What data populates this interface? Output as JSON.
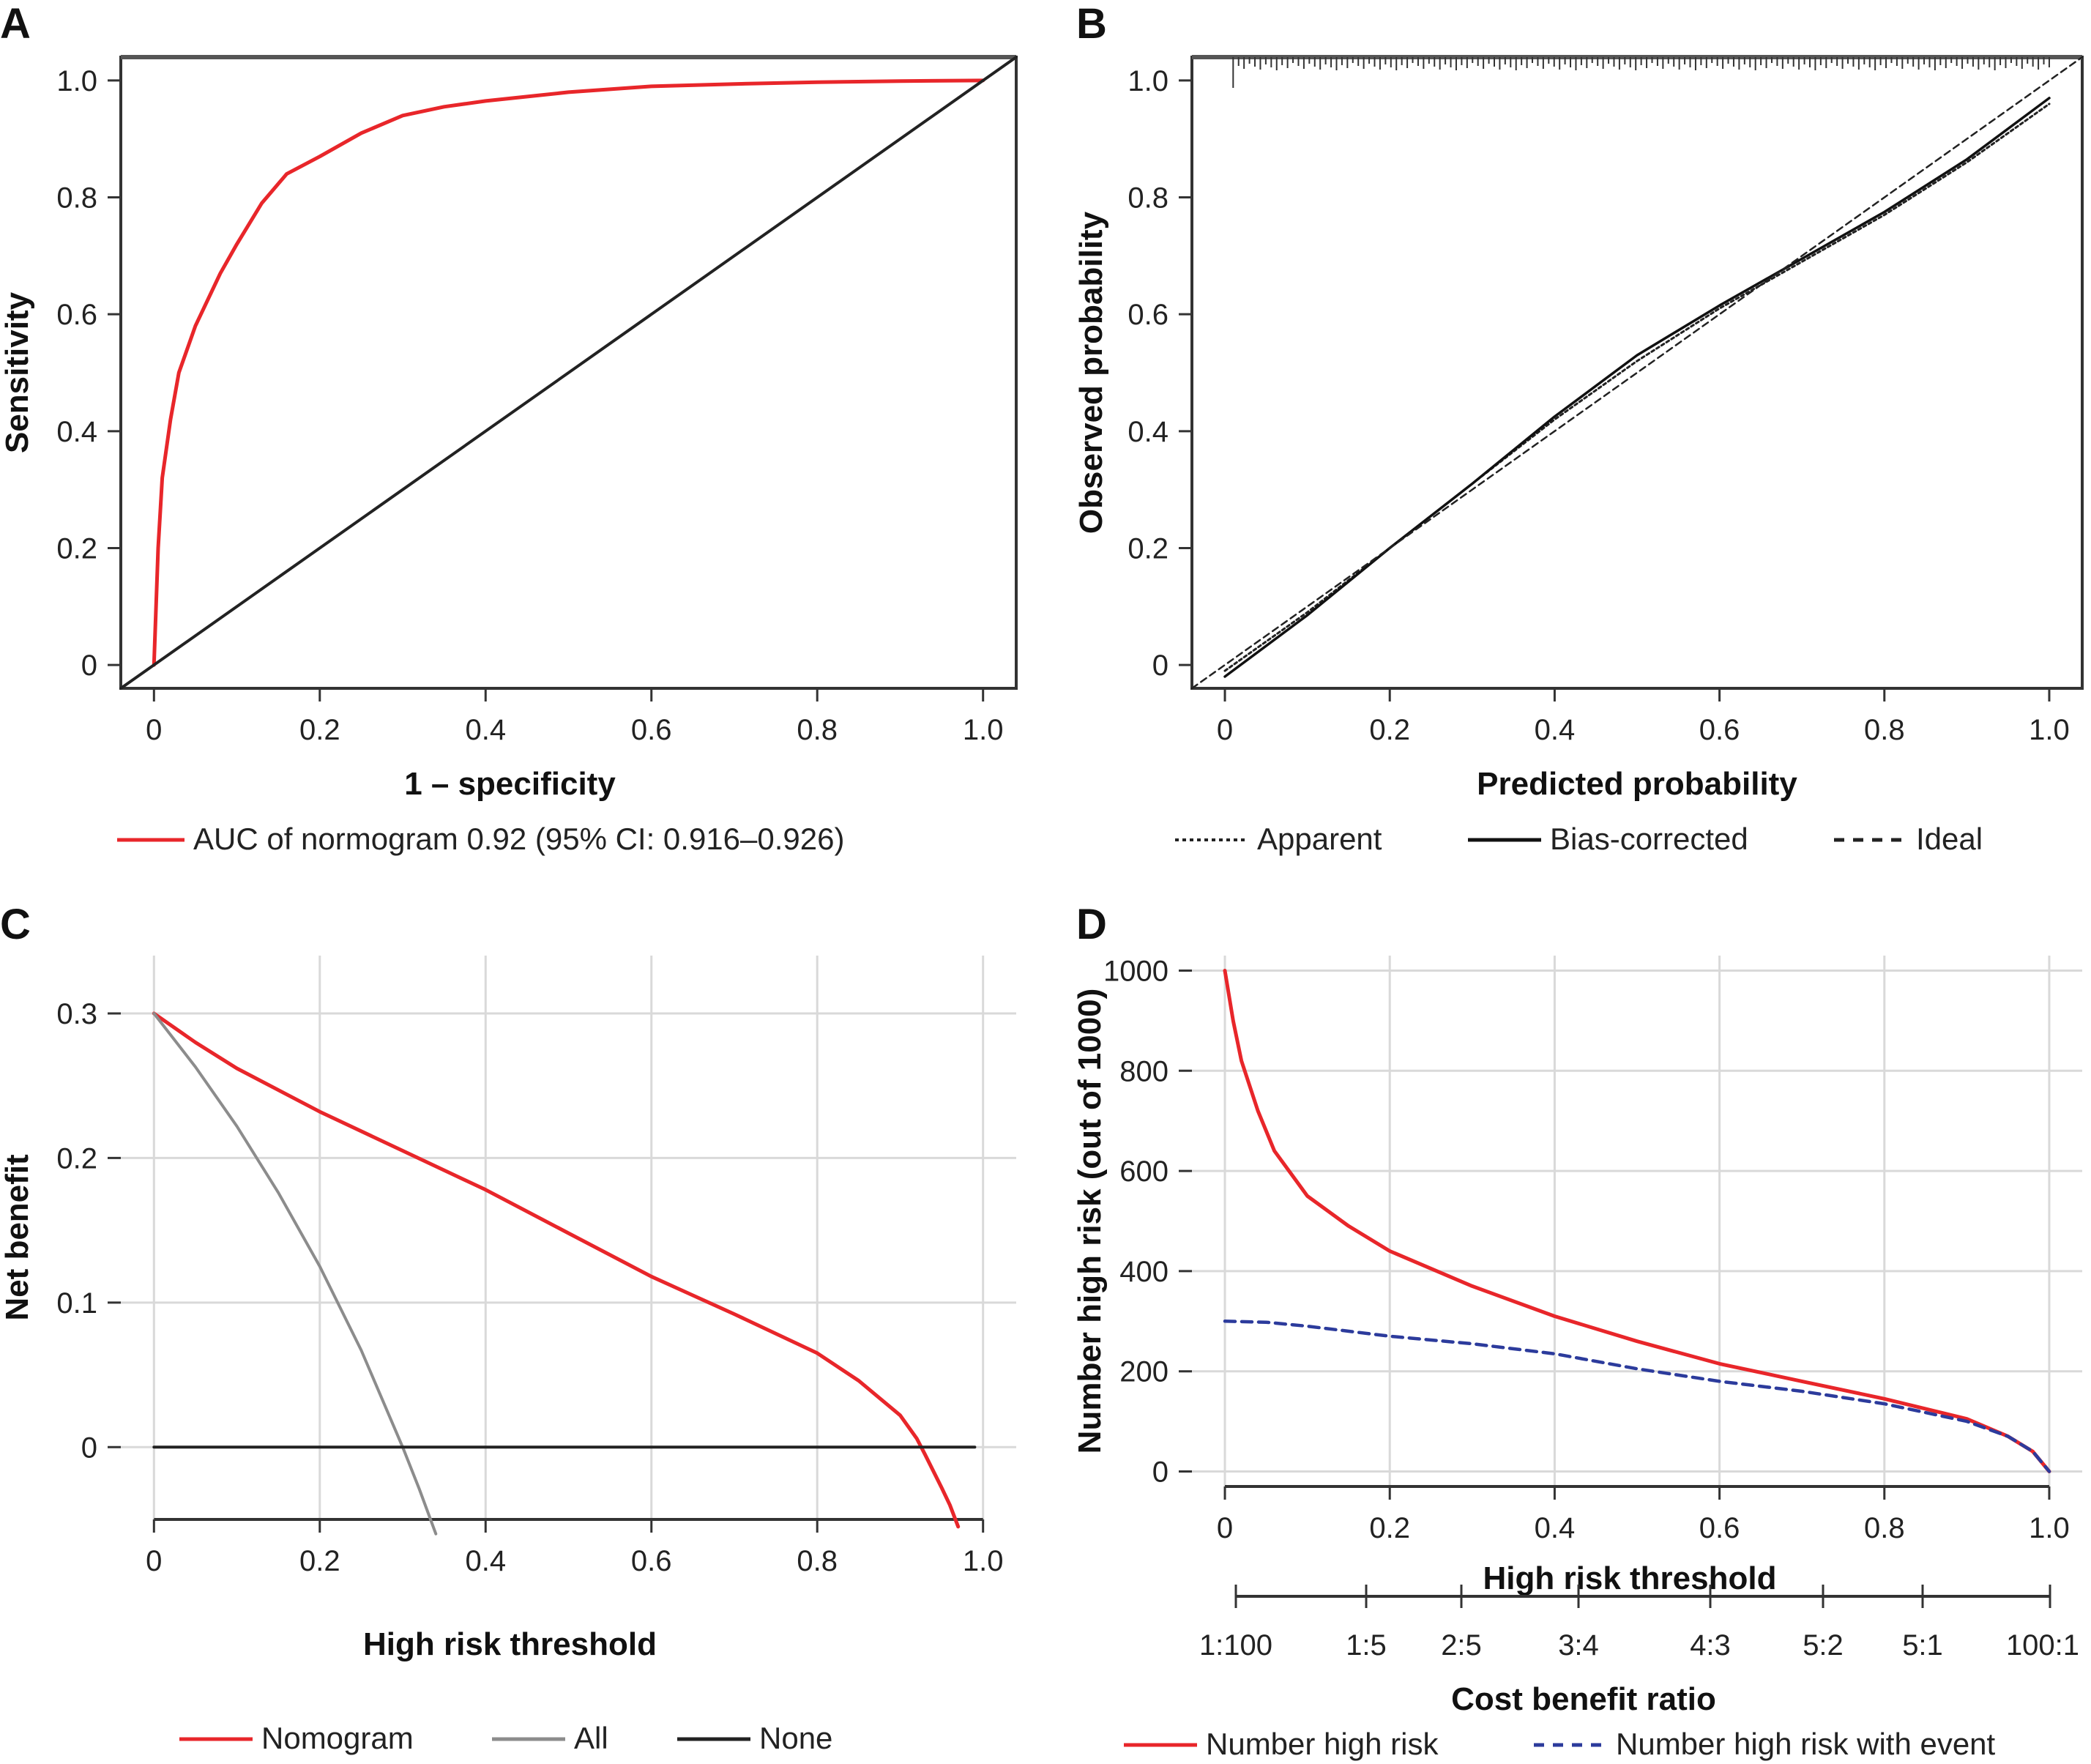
{
  "chart_data": [
    {
      "panel": "A",
      "type": "line",
      "xlabel": "1 – specificity",
      "ylabel": "Sensitivity",
      "xlim": [
        -0.04,
        1.04
      ],
      "ylim": [
        -0.04,
        1.04
      ],
      "xticks": [
        "0",
        "0.2",
        "0.4",
        "0.6",
        "0.8",
        "1.0"
      ],
      "yticks": [
        "0",
        "0.2",
        "0.4",
        "0.6",
        "0.8",
        "1.0"
      ],
      "legend_placement": "bottom",
      "series": [
        {
          "name": "AUC of normogram 0.92 (95% CI: 0.916–0.926)",
          "color": "#e8262a",
          "x": [
            0,
            0.005,
            0.01,
            0.02,
            0.03,
            0.05,
            0.08,
            0.1,
            0.13,
            0.16,
            0.2,
            0.25,
            0.3,
            0.35,
            0.4,
            0.5,
            0.6,
            0.7,
            0.8,
            0.9,
            1.0
          ],
          "y": [
            0,
            0.2,
            0.32,
            0.42,
            0.5,
            0.58,
            0.67,
            0.72,
            0.79,
            0.84,
            0.87,
            0.91,
            0.94,
            0.955,
            0.965,
            0.98,
            0.99,
            0.994,
            0.997,
            0.999,
            1.0
          ]
        },
        {
          "name": "",
          "color": "#222222",
          "x": [
            -0.04,
            1.04
          ],
          "y": [
            -0.04,
            1.04
          ]
        }
      ]
    },
    {
      "panel": "B",
      "type": "line",
      "xlabel": "Predicted probability",
      "ylabel": "Observed probability",
      "xlim": [
        -0.04,
        1.04
      ],
      "ylim": [
        -0.04,
        1.04
      ],
      "xticks": [
        "0",
        "0.2",
        "0.4",
        "0.6",
        "0.8",
        "1.0"
      ],
      "yticks": [
        "0",
        "0.2",
        "0.4",
        "0.6",
        "0.8",
        "1.0"
      ],
      "legend_placement": "bottom",
      "series": [
        {
          "name": "Apparent",
          "color": "#222222",
          "x": [
            0,
            0.1,
            0.2,
            0.3,
            0.4,
            0.5,
            0.6,
            0.7,
            0.8,
            0.9,
            1.0
          ],
          "y": [
            -0.01,
            0.09,
            0.2,
            0.31,
            0.42,
            0.52,
            0.61,
            0.69,
            0.77,
            0.86,
            0.96
          ]
        },
        {
          "name": "Bias-corrected",
          "color": "#111111",
          "x": [
            0,
            0.1,
            0.2,
            0.3,
            0.4,
            0.5,
            0.6,
            0.7,
            0.8,
            0.9,
            1.0
          ],
          "y": [
            -0.02,
            0.085,
            0.2,
            0.31,
            0.425,
            0.53,
            0.615,
            0.695,
            0.775,
            0.865,
            0.97
          ]
        },
        {
          "name": "Ideal",
          "color": "#222222",
          "x": [
            -0.04,
            1.04
          ],
          "y": [
            -0.04,
            1.04
          ]
        }
      ]
    },
    {
      "panel": "C",
      "type": "line",
      "xlabel": "High risk threshold",
      "ylabel": "Net benefit",
      "xlim": [
        -0.04,
        1.04
      ],
      "ylim": [
        -0.05,
        0.34
      ],
      "xticks": [
        "0",
        "0.2",
        "0.4",
        "0.6",
        "0.8",
        "1.0"
      ],
      "yticks": [
        "0",
        "0.1",
        "0.2",
        "0.3"
      ],
      "grid": true,
      "legend_placement": "bottom",
      "series": [
        {
          "name": "Nomogram",
          "color": "#e8262a",
          "x": [
            0,
            0.05,
            0.1,
            0.2,
            0.3,
            0.4,
            0.5,
            0.6,
            0.65,
            0.7,
            0.8,
            0.85,
            0.9,
            0.92,
            0.93,
            0.95,
            0.96,
            0.97
          ],
          "y": [
            0.3,
            0.28,
            0.262,
            0.232,
            0.205,
            0.178,
            0.148,
            0.118,
            0.105,
            0.092,
            0.065,
            0.046,
            0.022,
            0.006,
            -0.005,
            -0.028,
            -0.04,
            -0.055
          ]
        },
        {
          "name": "All",
          "color": "#8c8c8c",
          "x": [
            0,
            0.05,
            0.1,
            0.15,
            0.2,
            0.25,
            0.3,
            0.32,
            0.34
          ],
          "y": [
            0.3,
            0.263,
            0.222,
            0.176,
            0.125,
            0.067,
            0.0,
            -0.029,
            -0.06
          ]
        },
        {
          "name": "None",
          "color": "#222222",
          "x": [
            0,
            0.99
          ],
          "y": [
            0,
            0
          ]
        }
      ]
    },
    {
      "panel": "D",
      "type": "line",
      "xlabel": "High risk threshold",
      "ylabel": "Number high risk (out of 1000)",
      "secondary_xlabel": "Cost benefit ratio",
      "secondary_xticks": [
        "1:100",
        "1:5",
        "2:5",
        "3:4",
        "4:3",
        "5:2",
        "5:1",
        "100:1"
      ],
      "xlim": [
        -0.04,
        1.04
      ],
      "ylim": [
        -30,
        1030
      ],
      "xticks": [
        "0",
        "0.2",
        "0.4",
        "0.6",
        "0.8",
        "1.0"
      ],
      "yticks": [
        "0",
        "200",
        "400",
        "600",
        "800",
        "1000"
      ],
      "grid": true,
      "legend_placement": "bottom",
      "series": [
        {
          "name": "Number high risk",
          "color": "#e8262a",
          "x": [
            0,
            0.01,
            0.02,
            0.04,
            0.06,
            0.1,
            0.15,
            0.2,
            0.3,
            0.4,
            0.5,
            0.6,
            0.7,
            0.8,
            0.9,
            0.95,
            0.98,
            1.0
          ],
          "y": [
            1000,
            900,
            820,
            720,
            640,
            550,
            490,
            440,
            370,
            310,
            260,
            215,
            180,
            145,
            105,
            70,
            40,
            0
          ]
        },
        {
          "name": "Number high risk with event",
          "color": "#2c3b9c",
          "x": [
            0,
            0.05,
            0.1,
            0.2,
            0.3,
            0.4,
            0.5,
            0.6,
            0.7,
            0.8,
            0.9,
            0.95,
            0.98,
            1.0
          ],
          "y": [
            300,
            298,
            290,
            270,
            255,
            235,
            205,
            180,
            160,
            135,
            100,
            70,
            40,
            0
          ]
        }
      ]
    }
  ]
}
